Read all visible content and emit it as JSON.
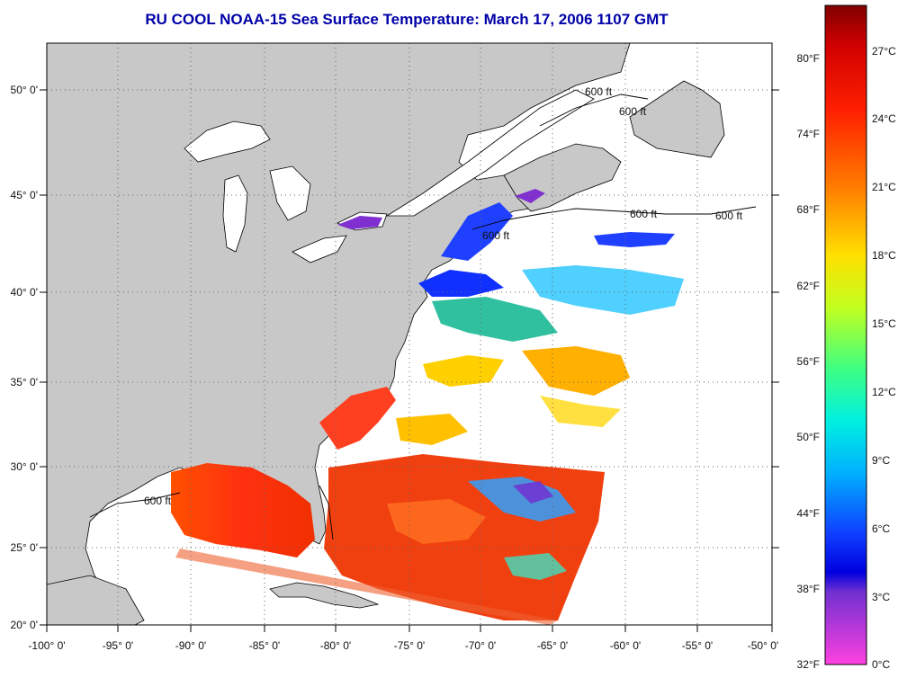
{
  "title": "RU COOL  NOAA-15  Sea Surface Temperature:  March 17, 2006 1107 GMT",
  "map": {
    "lon_ticks": [
      "-100° 0'",
      "-95° 0'",
      "-90° 0'",
      "-85° 0'",
      "-80° 0'",
      "-75° 0'",
      "-70° 0'",
      "-65° 0'",
      "-60° 0'",
      "-55° 0'",
      "-50° 0'"
    ],
    "lat_ticks": [
      "50° 0'",
      "45° 0'",
      "40° 0'",
      "35° 0'",
      "30° 0'",
      "25° 0'",
      "20° 0'"
    ],
    "contour_labels": [
      "600 ft",
      "600 ft",
      "600 ft",
      "600 ft",
      "600 ft",
      "600 ft"
    ],
    "colors": {
      "land": "#c8c8c8",
      "ocean_clouds": "#ffffff",
      "frame": "#000000",
      "grid": "#555555"
    }
  },
  "colorbar": {
    "fahrenheit": [
      "80°F",
      "74°F",
      "68°F",
      "62°F",
      "56°F",
      "50°F",
      "44°F",
      "38°F",
      "32°F"
    ],
    "celsius": [
      "27°C",
      "24°C",
      "21°C",
      "18°C",
      "15°C",
      "12°C",
      "9°C",
      "6°C",
      "3°C",
      "0°C"
    ],
    "stops": [
      "#800000",
      "#e00000",
      "#ff3000",
      "#ff9000",
      "#ffe000",
      "#c8ff20",
      "#40ff60",
      "#00e0d0",
      "#00c0ff",
      "#2060ff",
      "#0000e0",
      "#8030d0",
      "#ff40e0"
    ]
  }
}
